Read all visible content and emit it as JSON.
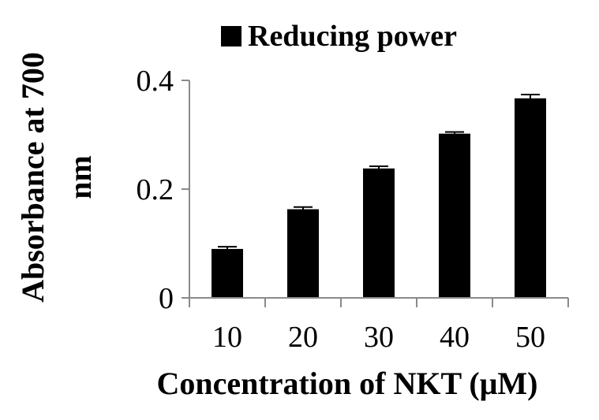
{
  "chart_data": {
    "type": "bar",
    "categories": [
      "10",
      "20",
      "30",
      "40",
      "50"
    ],
    "series": [
      {
        "name": "Reducing power",
        "values": [
          0.09,
          0.163,
          0.238,
          0.302,
          0.367
        ],
        "errors": [
          0.004,
          0.004,
          0.004,
          0.003,
          0.007
        ],
        "color": "#000000"
      }
    ],
    "xlabel": "Concentration of NKT (μM)",
    "ylabel": "Absorbance at 700 nm",
    "ylabel_lines": [
      "Absorbance at 700",
      "nm"
    ],
    "ylim": [
      0,
      0.4
    ],
    "yticks": [
      "0",
      "0.2",
      "0.4"
    ],
    "grid": false,
    "legend_position": "top"
  }
}
